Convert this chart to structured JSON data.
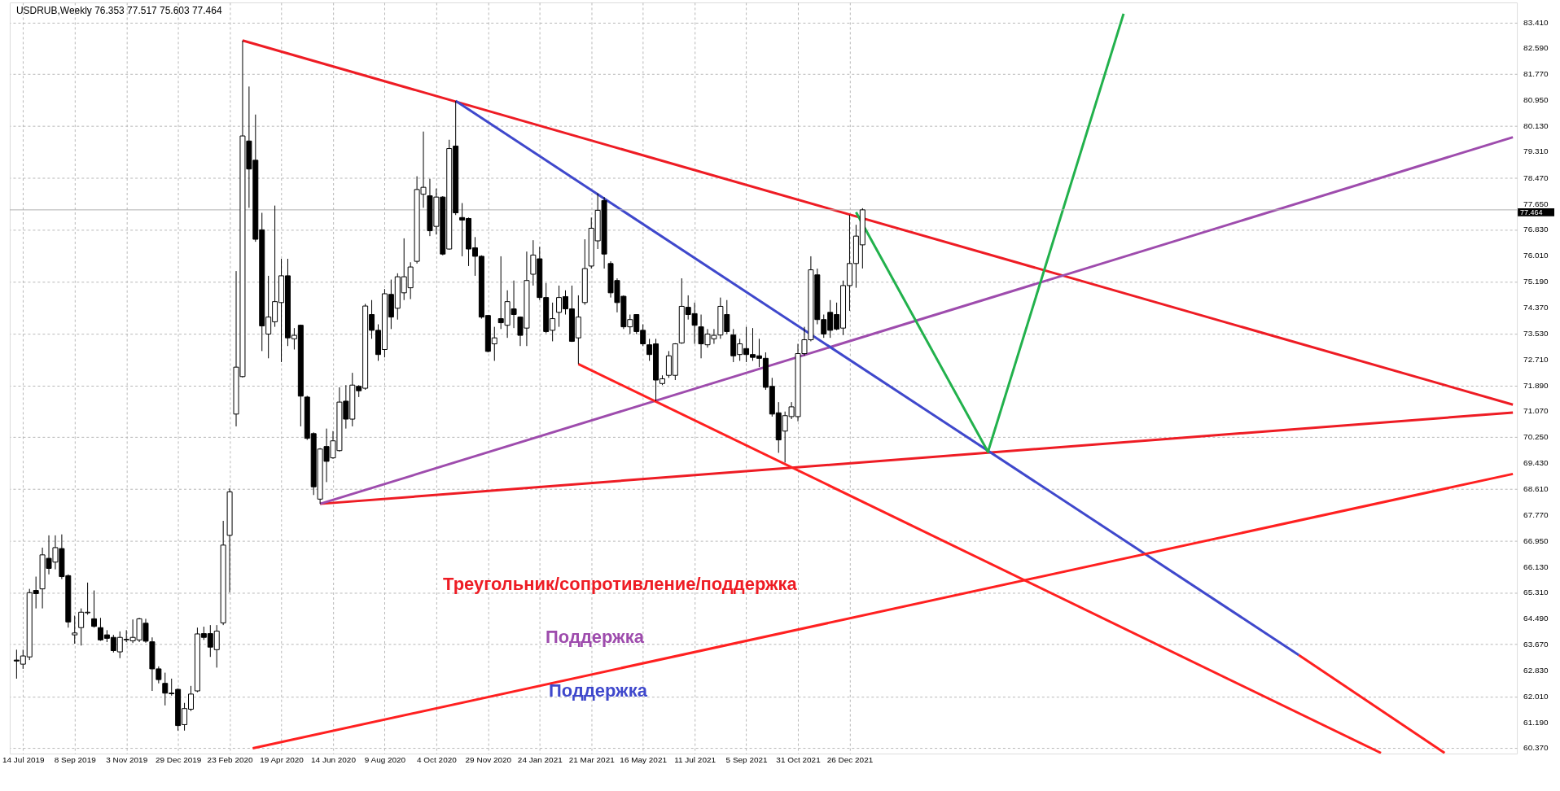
{
  "chart_data": {
    "type": "candlestick",
    "title": "USDRUB,Weekly  76.353 77.517 75.603 77.464",
    "x": [
      "2019-07-07",
      "2019-07-14",
      "2019-07-21",
      "2019-07-28",
      "2019-08-04",
      "2019-08-11",
      "2019-08-18",
      "2019-08-25",
      "2019-09-01",
      "2019-09-08",
      "2019-09-15",
      "2019-09-22",
      "2019-09-29",
      "2019-10-06",
      "2019-10-13",
      "2019-10-20",
      "2019-10-27",
      "2019-11-03",
      "2019-11-10",
      "2019-11-17",
      "2019-11-24",
      "2019-12-01",
      "2019-12-08",
      "2019-12-15",
      "2019-12-22",
      "2019-12-29",
      "2020-01-05",
      "2020-01-12",
      "2020-01-19",
      "2020-01-26",
      "2020-02-02",
      "2020-02-09",
      "2020-02-16",
      "2020-02-23",
      "2020-03-01",
      "2020-03-08",
      "2020-03-15",
      "2020-03-22",
      "2020-03-29",
      "2020-04-05",
      "2020-04-12",
      "2020-04-19",
      "2020-04-26",
      "2020-05-03",
      "2020-05-10",
      "2020-05-17",
      "2020-05-24",
      "2020-05-31",
      "2020-06-07",
      "2020-06-14",
      "2020-06-21",
      "2020-06-28",
      "2020-07-05",
      "2020-07-12",
      "2020-07-19",
      "2020-07-26",
      "2020-08-02",
      "2020-08-09",
      "2020-08-16",
      "2020-08-23",
      "2020-08-30",
      "2020-09-06",
      "2020-09-13",
      "2020-09-20",
      "2020-09-27",
      "2020-10-04",
      "2020-10-11",
      "2020-10-18",
      "2020-10-25",
      "2020-11-01",
      "2020-11-08",
      "2020-11-15",
      "2020-11-22",
      "2020-11-29",
      "2020-12-06",
      "2020-12-13",
      "2020-12-20",
      "2020-12-27",
      "2021-01-03",
      "2021-01-10",
      "2021-01-17",
      "2021-01-24",
      "2021-01-31",
      "2021-02-07",
      "2021-02-14",
      "2021-02-21",
      "2021-02-28",
      "2021-03-07",
      "2021-03-14",
      "2021-03-21",
      "2021-03-28",
      "2021-04-04",
      "2021-04-11",
      "2021-04-18",
      "2021-04-25",
      "2021-05-02",
      "2021-05-09",
      "2021-05-16",
      "2021-05-23",
      "2021-05-30",
      "2021-06-06",
      "2021-06-13",
      "2021-06-20",
      "2021-06-27",
      "2021-07-04",
      "2021-07-11",
      "2021-07-18",
      "2021-07-25",
      "2021-08-01",
      "2021-08-08",
      "2021-08-15",
      "2021-08-22",
      "2021-08-29",
      "2021-09-05",
      "2021-09-12",
      "2021-09-19",
      "2021-09-26",
      "2021-10-03",
      "2021-10-10",
      "2021-10-17",
      "2021-10-24",
      "2021-10-31",
      "2021-11-07",
      "2021-11-14",
      "2021-11-21",
      "2021-11-28",
      "2021-12-05",
      "2021-12-12",
      "2021-12-19",
      "2021-12-26",
      "2022-01-02",
      "2022-01-09"
    ],
    "ohlc": [
      [
        63.17,
        63.5,
        62.58,
        63.14
      ],
      [
        63.04,
        63.5,
        62.89,
        63.3
      ],
      [
        63.27,
        65.43,
        63.17,
        65.31
      ],
      [
        65.38,
        65.82,
        64.81,
        65.28
      ],
      [
        65.43,
        66.74,
        64.81,
        66.51
      ],
      [
        66.4,
        67.13,
        65.89,
        66.08
      ],
      [
        66.28,
        67.13,
        66.05,
        66.74
      ],
      [
        66.71,
        67.16,
        65.74,
        65.82
      ],
      [
        65.85,
        65.89,
        64.2,
        64.38
      ],
      [
        63.97,
        64.58,
        63.69,
        64.03
      ],
      [
        64.2,
        64.81,
        63.63,
        64.69
      ],
      [
        64.67,
        65.63,
        64.61,
        64.69
      ],
      [
        64.48,
        65.38,
        64.2,
        64.24
      ],
      [
        64.2,
        64.51,
        63.78,
        63.81
      ],
      [
        63.97,
        64.12,
        63.74,
        63.86
      ],
      [
        63.89,
        63.97,
        63.41,
        63.47
      ],
      [
        63.43,
        64.08,
        63.23,
        63.89
      ],
      [
        63.81,
        64.12,
        63.74,
        63.83
      ],
      [
        63.78,
        64.46,
        63.71,
        63.89
      ],
      [
        63.81,
        64.51,
        63.74,
        64.48
      ],
      [
        64.34,
        64.48,
        63.72,
        63.77
      ],
      [
        63.75,
        63.89,
        62.19,
        62.89
      ],
      [
        62.89,
        62.97,
        62.43,
        62.55
      ],
      [
        62.43,
        62.77,
        61.73,
        62.12
      ],
      [
        62.12,
        62.58,
        62.04,
        62.1
      ],
      [
        62.24,
        62.27,
        60.93,
        61.09
      ],
      [
        61.12,
        61.81,
        60.93,
        61.63
      ],
      [
        61.61,
        62.35,
        61.55,
        62.09
      ],
      [
        62.19,
        64.2,
        62.15,
        64.0
      ],
      [
        64.01,
        64.23,
        63.81,
        63.89
      ],
      [
        64.01,
        64.28,
        63.27,
        63.58
      ],
      [
        63.5,
        64.28,
        62.93,
        64.09
      ],
      [
        64.35,
        67.59,
        64.28,
        66.82
      ],
      [
        67.13,
        68.62,
        65.32,
        68.51
      ],
      [
        70.98,
        75.52,
        70.59,
        72.47
      ],
      [
        72.17,
        82.84,
        72.14,
        79.81
      ],
      [
        79.65,
        81.38,
        77.53,
        78.76
      ],
      [
        79.04,
        80.49,
        76.45,
        76.53
      ],
      [
        76.83,
        77.37,
        72.98,
        73.78
      ],
      [
        73.52,
        75.37,
        72.75,
        74.06
      ],
      [
        73.91,
        77.6,
        73.75,
        74.55
      ],
      [
        74.52,
        75.91,
        72.63,
        75.37
      ],
      [
        75.37,
        75.91,
        73.14,
        73.4
      ],
      [
        73.37,
        73.71,
        73.03,
        73.48
      ],
      [
        73.8,
        73.82,
        70.59,
        71.55
      ],
      [
        71.52,
        71.56,
        70.16,
        70.21
      ],
      [
        70.36,
        70.4,
        68.41,
        68.67
      ],
      [
        68.28,
        69.9,
        68.13,
        69.87
      ],
      [
        69.95,
        70.52,
        68.82,
        69.48
      ],
      [
        69.59,
        70.44,
        69.56,
        70.13
      ],
      [
        69.82,
        71.83,
        69.79,
        71.36
      ],
      [
        71.39,
        71.9,
        70.52,
        70.82
      ],
      [
        70.82,
        72.29,
        70.59,
        71.9
      ],
      [
        71.86,
        71.9,
        71.52,
        71.72
      ],
      [
        71.8,
        74.48,
        71.75,
        74.41
      ],
      [
        74.14,
        74.6,
        73.37,
        73.64
      ],
      [
        73.64,
        73.83,
        72.67,
        72.87
      ],
      [
        73.03,
        74.95,
        72.78,
        74.8
      ],
      [
        74.78,
        75.25,
        73.68,
        74.06
      ],
      [
        74.34,
        75.45,
        73.98,
        75.34
      ],
      [
        74.83,
        76.56,
        74.6,
        75.34
      ],
      [
        74.99,
        75.8,
        74.63,
        75.65
      ],
      [
        75.83,
        78.53,
        75.76,
        78.11
      ],
      [
        77.96,
        79.95,
        77.53,
        78.18
      ],
      [
        77.91,
        78.45,
        76.63,
        76.8
      ],
      [
        76.94,
        78.14,
        76.68,
        77.87
      ],
      [
        77.87,
        77.9,
        76.02,
        76.06
      ],
      [
        76.22,
        79.69,
        76.2,
        79.41
      ],
      [
        79.49,
        80.92,
        77.3,
        77.37
      ],
      [
        77.22,
        77.68,
        75.99,
        77.14
      ],
      [
        77.19,
        77.22,
        75.68,
        76.22
      ],
      [
        76.26,
        76.6,
        75.37,
        75.99
      ],
      [
        75.99,
        76.02,
        74.01,
        74.06
      ],
      [
        74.11,
        74.12,
        72.94,
        72.97
      ],
      [
        73.21,
        73.75,
        72.67,
        73.4
      ],
      [
        74.01,
        75.99,
        73.68,
        73.88
      ],
      [
        73.8,
        74.91,
        73.4,
        74.55
      ],
      [
        74.32,
        75.22,
        73.71,
        74.14
      ],
      [
        74.06,
        74.08,
        73.14,
        73.48
      ],
      [
        73.71,
        76.14,
        73.14,
        75.22
      ],
      [
        75.42,
        76.5,
        75.06,
        76.03
      ],
      [
        75.91,
        76.29,
        74.6,
        74.68
      ],
      [
        74.68,
        75.14,
        73.55,
        73.6
      ],
      [
        73.64,
        74.52,
        73.29,
        74.01
      ],
      [
        74.21,
        75.06,
        73.75,
        74.68
      ],
      [
        74.71,
        74.91,
        74.14,
        74.32
      ],
      [
        74.32,
        75.06,
        73.27,
        73.29
      ],
      [
        73.4,
        74.75,
        72.57,
        74.06
      ],
      [
        74.52,
        76.53,
        74.45,
        75.6
      ],
      [
        75.68,
        77.22,
        75.6,
        76.88
      ],
      [
        76.48,
        77.99,
        76.22,
        77.45
      ],
      [
        77.76,
        77.87,
        75.6,
        76.06
      ],
      [
        75.76,
        75.83,
        74.68,
        74.83
      ],
      [
        75.22,
        75.29,
        74.21,
        74.52
      ],
      [
        74.72,
        74.75,
        73.68,
        73.75
      ],
      [
        73.75,
        74.14,
        73.52,
        73.98
      ],
      [
        74.14,
        74.15,
        73.52,
        73.6
      ],
      [
        73.64,
        73.83,
        73.14,
        73.21
      ],
      [
        73.18,
        73.37,
        72.67,
        72.87
      ],
      [
        73.21,
        73.37,
        71.39,
        72.06
      ],
      [
        71.95,
        72.21,
        71.9,
        72.1
      ],
      [
        72.21,
        72.98,
        72.13,
        72.83
      ],
      [
        72.21,
        73.23,
        72.06,
        73.21
      ],
      [
        73.24,
        75.29,
        73.21,
        74.4
      ],
      [
        74.37,
        74.75,
        73.98,
        74.14
      ],
      [
        74.17,
        74.52,
        73.21,
        73.8
      ],
      [
        73.75,
        74.14,
        72.75,
        73.21
      ],
      [
        73.18,
        73.68,
        73.09,
        73.52
      ],
      [
        73.37,
        73.68,
        73.21,
        73.48
      ],
      [
        73.49,
        74.68,
        73.37,
        74.4
      ],
      [
        74.14,
        74.6,
        73.52,
        73.6
      ],
      [
        73.49,
        73.68,
        72.63,
        72.83
      ],
      [
        72.87,
        73.37,
        72.67,
        73.21
      ],
      [
        73.06,
        73.75,
        72.63,
        72.87
      ],
      [
        72.87,
        73.71,
        72.67,
        72.78
      ],
      [
        72.83,
        73.37,
        72.47,
        72.75
      ],
      [
        72.75,
        72.94,
        71.75,
        71.83
      ],
      [
        71.86,
        72.13,
        70.9,
        70.98
      ],
      [
        71.02,
        71.36,
        69.75,
        70.16
      ],
      [
        70.44,
        71.06,
        69.44,
        70.93
      ],
      [
        70.9,
        71.36,
        70.82,
        71.21
      ],
      [
        70.9,
        73.21,
        70.75,
        72.9
      ],
      [
        72.9,
        73.75,
        72.83,
        73.34
      ],
      [
        73.34,
        75.99,
        73.29,
        75.56
      ],
      [
        75.4,
        75.6,
        73.83,
        73.98
      ],
      [
        73.98,
        74.14,
        73.4,
        73.52
      ],
      [
        74.21,
        74.6,
        73.4,
        73.64
      ],
      [
        74.14,
        74.52,
        73.64,
        73.68
      ],
      [
        73.71,
        75.22,
        73.49,
        75.06
      ],
      [
        75.06,
        77.3,
        74.26,
        75.76
      ],
      [
        75.76,
        76.99,
        74.99,
        76.63
      ],
      [
        76.353,
        77.517,
        75.603,
        77.464
      ]
    ],
    "series": [
      {
        "type": "line",
        "name": "Треугольник/сопротивление/поддержка",
        "color": "#ee1c24",
        "x": [
          "2020-03-08",
          "2023-12-15"
        ],
        "values": [
          82.84,
          71.28
        ]
      },
      {
        "type": "line",
        "color": "#ee1c24",
        "x": [
          "2020-05-31",
          "2023-12-15"
        ],
        "values": [
          68.13,
          71.03
        ]
      },
      {
        "type": "line",
        "name": "Поддержка",
        "color": "#9e4cad",
        "x": [
          "2020-05-31",
          "2023-12-15"
        ],
        "values": [
          68.13,
          79.77
        ]
      },
      {
        "type": "line",
        "name": "Поддержка",
        "color": "#3f48cc",
        "x": [
          "2020-10-25",
          "2023-04-27"
        ],
        "values": [
          80.92,
          63.33
        ]
      },
      {
        "type": "line",
        "color": "#ff2020",
        "x": [
          "2021-03-07",
          "2023-07-25"
        ],
        "values": [
          72.57,
          60.22
        ]
      },
      {
        "type": "line",
        "color": "#ff2020",
        "x": [
          "2023-04-27",
          "2023-10-02"
        ],
        "values": [
          63.33,
          60.22
        ]
      },
      {
        "type": "line",
        "color": "#ff2020",
        "x": [
          "2020-03-19",
          "2023-12-15"
        ],
        "values": [
          60.37,
          69.08
        ]
      },
      {
        "type": "line",
        "color": "#22b14c",
        "x": [
          "2022-01-02",
          "2022-05-25",
          "2022-10-19"
        ],
        "values": [
          77.39,
          69.78,
          83.69
        ]
      }
    ],
    "xlim": [
      "2019-07-04",
      "2023-12-15"
    ],
    "ylim": [
      60.2,
      84.05
    ],
    "xticks": [
      {
        "value": "2019-07-14",
        "label": "14 Jul 2019"
      },
      {
        "value": "2019-09-08",
        "label": "8 Sep 2019"
      },
      {
        "value": "2019-11-03",
        "label": "3 Nov 2019"
      },
      {
        "value": "2019-12-29",
        "label": "29 Dec 2019"
      },
      {
        "value": "2020-02-23",
        "label": "23 Feb 2020"
      },
      {
        "value": "2020-04-19",
        "label": "19 Apr 2020"
      },
      {
        "value": "2020-06-14",
        "label": "14 Jun 2020"
      },
      {
        "value": "2020-08-09",
        "label": "9 Aug 2020"
      },
      {
        "value": "2020-10-04",
        "label": "4 Oct 2020"
      },
      {
        "value": "2020-11-29",
        "label": "29 Nov 2020"
      },
      {
        "value": "2021-01-24",
        "label": "24 Jan 2021"
      },
      {
        "value": "2021-03-21",
        "label": "21 Mar 2021"
      },
      {
        "value": "2021-05-16",
        "label": "16 May 2021"
      },
      {
        "value": "2021-07-11",
        "label": "11 Jul 2021"
      },
      {
        "value": "2021-09-05",
        "label": "5 Sep 2021"
      },
      {
        "value": "2021-10-31",
        "label": "31 Oct 2021"
      },
      {
        "value": "2021-12-26",
        "label": "26 Dec 2021"
      }
    ],
    "yticks": [
      {
        "value": 60.37,
        "label": "60.370"
      },
      {
        "value": 61.19,
        "label": "61.190"
      },
      {
        "value": 62.01,
        "label": "62.010"
      },
      {
        "value": 62.83,
        "label": "62.830"
      },
      {
        "value": 63.67,
        "label": "63.670"
      },
      {
        "value": 64.49,
        "label": "64.490"
      },
      {
        "value": 65.31,
        "label": "65.310"
      },
      {
        "value": 66.13,
        "label": "66.130"
      },
      {
        "value": 66.95,
        "label": "66.950"
      },
      {
        "value": 67.77,
        "label": "67.770"
      },
      {
        "value": 68.61,
        "label": "68.610"
      },
      {
        "value": 69.43,
        "label": "69.430"
      },
      {
        "value": 70.25,
        "label": "70.250"
      },
      {
        "value": 71.07,
        "label": "71.070"
      },
      {
        "value": 71.89,
        "label": "71.890"
      },
      {
        "value": 72.71,
        "label": "72.710"
      },
      {
        "value": 73.53,
        "label": "73.530"
      },
      {
        "value": 74.37,
        "label": "74.370"
      },
      {
        "value": 75.19,
        "label": "75.190"
      },
      {
        "value": 76.01,
        "label": "76.010"
      },
      {
        "value": 76.83,
        "label": "76.830"
      },
      {
        "value": 77.65,
        "label": "77.650"
      },
      {
        "value": 78.47,
        "label": "78.470"
      },
      {
        "value": 79.31,
        "label": "79.310"
      },
      {
        "value": 80.13,
        "label": "80.130"
      },
      {
        "value": 80.95,
        "label": "80.950"
      },
      {
        "value": 81.77,
        "label": "81.770"
      },
      {
        "value": 82.59,
        "label": "82.590"
      },
      {
        "value": 83.41,
        "label": "83.410"
      }
    ],
    "ref_lines": [
      {
        "axis": "y",
        "value": 77.464,
        "label": "77.464",
        "color": "#b0b0b0"
      }
    ],
    "grid": true,
    "line_style": "solid"
  }
}
